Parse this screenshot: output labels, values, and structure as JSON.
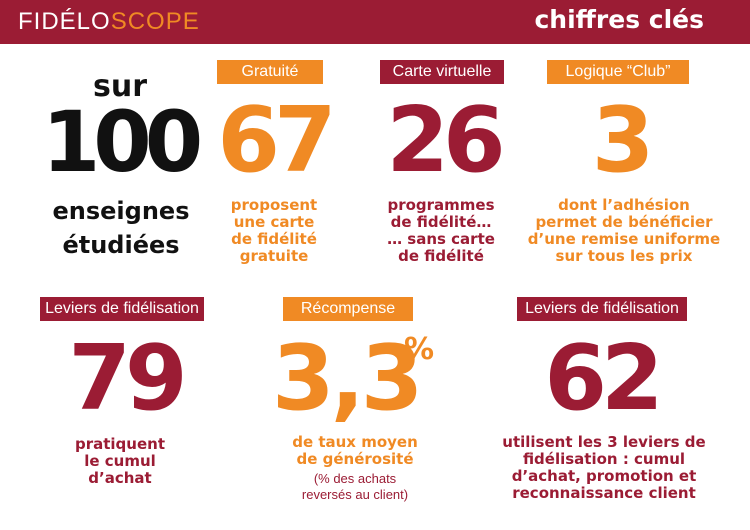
{
  "header": {
    "brand_part1": "FIDÉLO",
    "brand_part2": "SCOPE",
    "title": "chiffres clés"
  },
  "intro": {
    "line1": "sur",
    "number": "100",
    "line2": "enseignes",
    "line3": "étudiées"
  },
  "stats": [
    {
      "label": "Gratuité",
      "value": "67",
      "description": "proposent\nune carte\nde fidélité\ngratuite"
    },
    {
      "label": "Carte virtuelle",
      "value": "26",
      "description": "programmes\nde fidélité…\n… sans carte\nde fidélité"
    },
    {
      "label": "Logique “Club”",
      "value": "3",
      "description": "dont l’adhésion\npermet de bénéficier\nd’une remise uniforme\nsur tous les prix"
    },
    {
      "label": "Leviers de fidélisation",
      "value": "79",
      "description": "pratiquent\nle cumul\nd’achat"
    },
    {
      "label": "Récompense",
      "value": "3,3",
      "unit": "%",
      "description": "de taux moyen\nde générosité",
      "note": "(% des achats\nreversés au client)"
    },
    {
      "label": "Leviers de fidélisation",
      "value": "62",
      "description": "utilisent les 3 leviers de\nfidélisation : cumul\nd’achat, promotion et\nreconnaissance client"
    }
  ],
  "colors": {
    "accent_red": "#9b1c34",
    "accent_orange": "#f08a24",
    "text_dark": "#111111"
  }
}
